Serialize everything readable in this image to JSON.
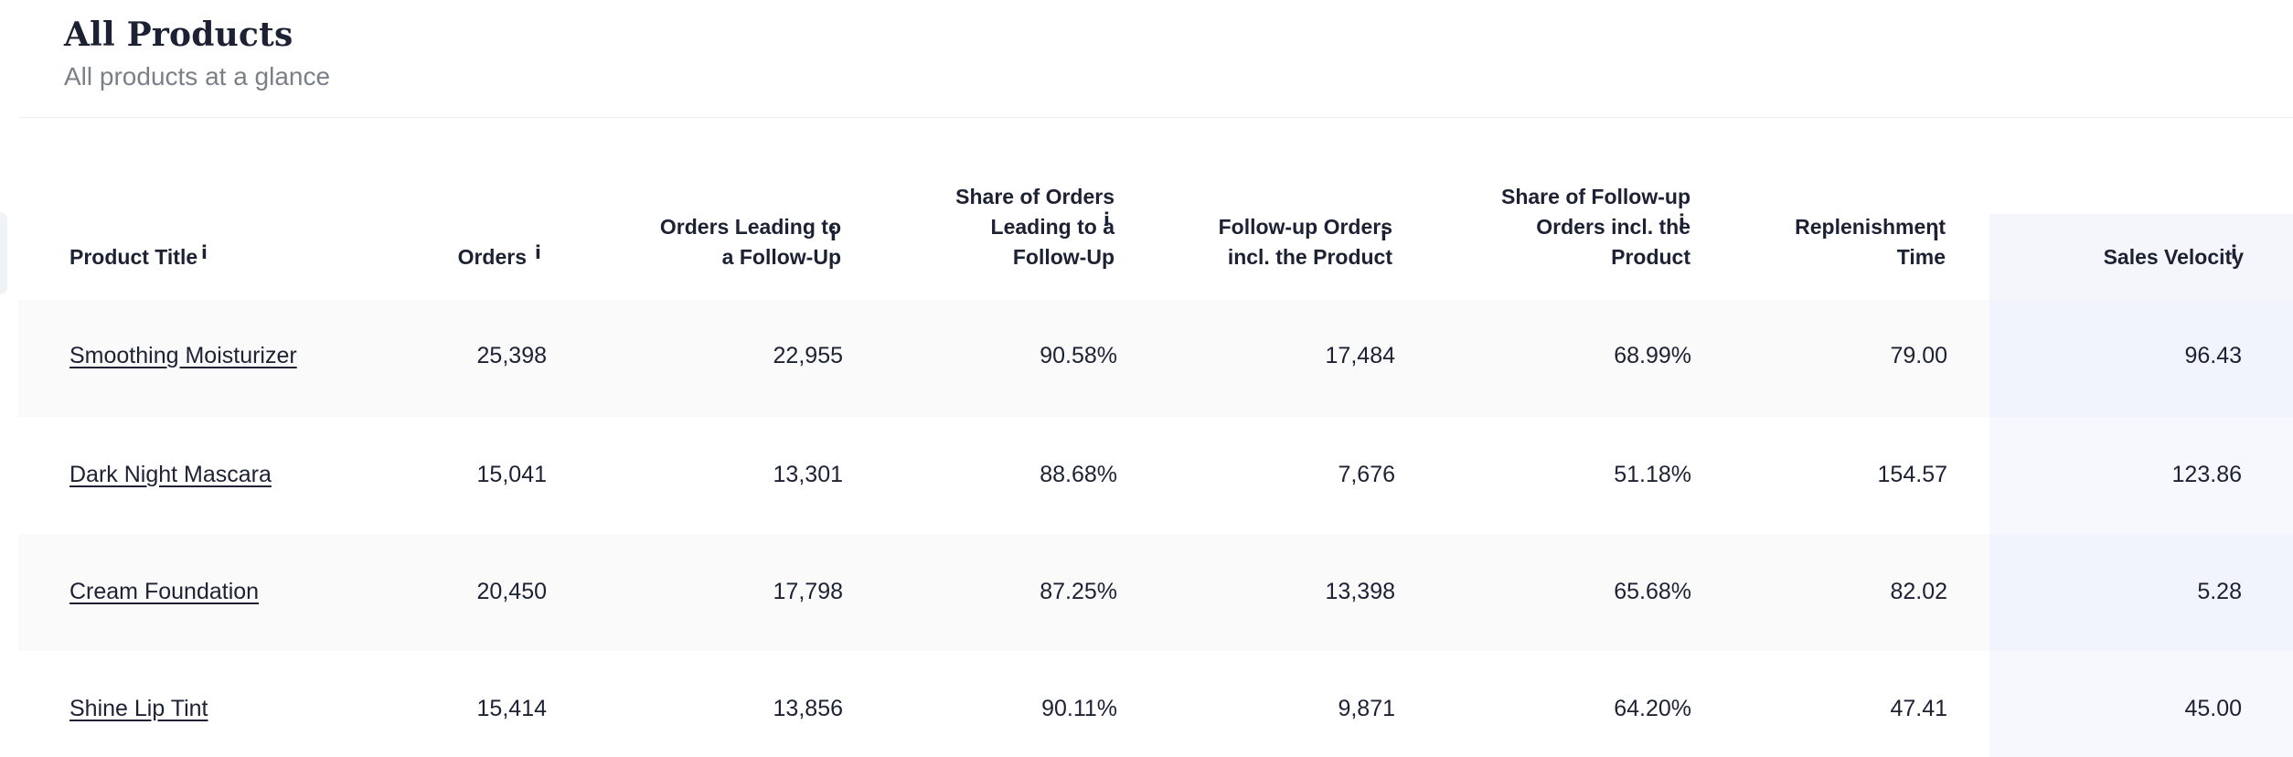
{
  "header": {
    "title": "All Products",
    "subtitle": "All products at a glance"
  },
  "info_glyph": "i",
  "columns": [
    {
      "lines": [
        "Product Title"
      ]
    },
    {
      "lines": [
        "Orders"
      ]
    },
    {
      "lines": [
        "Orders Leading to",
        "a Follow-Up"
      ]
    },
    {
      "lines": [
        "Share of Orders",
        "Leading to a",
        "Follow-Up"
      ]
    },
    {
      "lines": [
        "Follow-up Orders",
        "incl. the Product"
      ]
    },
    {
      "lines": [
        "Share of Follow-up",
        "Orders incl. the",
        "Product"
      ]
    },
    {
      "lines": [
        "Replenishment",
        "Time"
      ]
    },
    {
      "lines": [
        "Sales Velocity"
      ]
    }
  ],
  "rows": [
    {
      "product": "Smoothing Moisturizer",
      "orders": "25,398",
      "orders_followup": "22,955",
      "share_orders": "90.58%",
      "followup_orders": "17,484",
      "share_followup": "68.99%",
      "replenishment": "79.00",
      "velocity": "96.43"
    },
    {
      "product": "Dark Night Mascara",
      "orders": "15,041",
      "orders_followup": "13,301",
      "share_orders": "88.68%",
      "followup_orders": "7,676",
      "share_followup": "51.18%",
      "replenishment": "154.57",
      "velocity": "123.86"
    },
    {
      "product": "Cream Foundation",
      "orders": "20,450",
      "orders_followup": "17,798",
      "share_orders": "87.25%",
      "followup_orders": "13,398",
      "share_followup": "65.68%",
      "replenishment": "82.02",
      "velocity": "5.28"
    },
    {
      "product": "Shine Lip Tint",
      "orders": "15,414",
      "orders_followup": "13,856",
      "share_orders": "90.11%",
      "followup_orders": "9,871",
      "share_followup": "64.20%",
      "replenishment": "47.41",
      "velocity": "45.00"
    }
  ]
}
